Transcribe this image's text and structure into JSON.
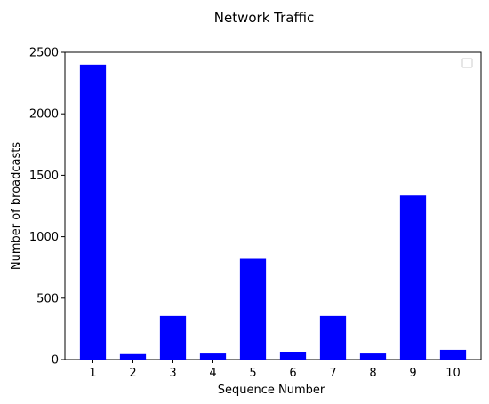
{
  "chart_data": {
    "type": "bar",
    "title": "Network Traffic",
    "xlabel": "Sequence Number",
    "ylabel": "Number of broadcasts",
    "categories": [
      "1",
      "2",
      "3",
      "4",
      "5",
      "6",
      "7",
      "8",
      "9",
      "10"
    ],
    "values": [
      2400,
      45,
      355,
      50,
      820,
      65,
      355,
      50,
      1335,
      80
    ],
    "ylim": [
      0,
      2500
    ],
    "yticks": [
      0,
      500,
      1000,
      1500,
      2000,
      2500
    ],
    "bar_color": "#0000ff",
    "grid": false,
    "legend": {
      "placement": "top-right",
      "entries": []
    }
  }
}
